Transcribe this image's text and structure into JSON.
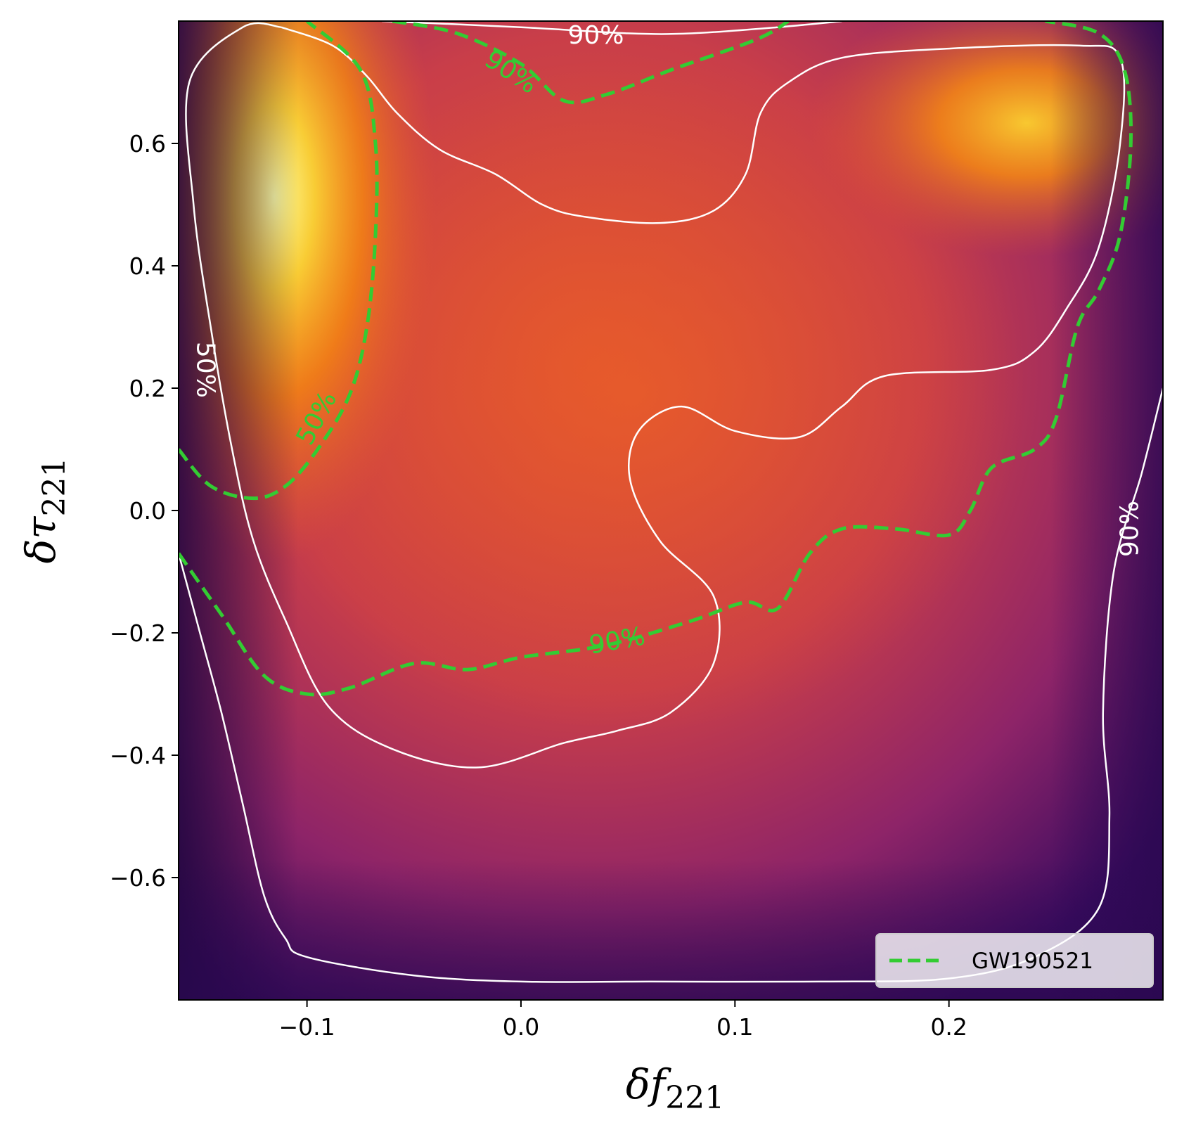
{
  "chart_data": {
    "type": "heatmap",
    "title": "",
    "xlabel": "δf",
    "xlabel_sub": "221",
    "ylabel": "δτ",
    "ylabel_sub": "221",
    "xlim": [
      -0.16,
      0.3
    ],
    "ylim": [
      -0.8,
      0.8
    ],
    "x_ticks": [
      -0.1,
      0.0,
      0.1,
      0.2
    ],
    "x_tick_labels": [
      "−0.1",
      "0.0",
      "0.1",
      "0.2"
    ],
    "y_ticks": [
      0.6,
      0.4,
      0.2,
      0.0,
      -0.2,
      -0.4,
      -0.6
    ],
    "y_tick_labels": [
      "0.6",
      "0.4",
      "0.2",
      "0.0",
      "−0.2",
      "−0.4",
      "−0.6"
    ],
    "colormap": "inferno",
    "density_modes": [
      {
        "x": -0.115,
        "y": 0.55,
        "relative_density": 1.0
      },
      {
        "x": 0.23,
        "y": 0.63,
        "relative_density": 0.8
      }
    ],
    "contours": [
      {
        "name": "main-50",
        "level_label": "50%",
        "color": "#ffffff",
        "style": "solid",
        "points": [
          [
            -0.112,
            0.79
          ],
          [
            -0.088,
            0.76
          ],
          [
            -0.072,
            0.71
          ],
          [
            -0.058,
            0.65
          ],
          [
            -0.038,
            0.59
          ],
          [
            -0.012,
            0.55
          ],
          [
            0.01,
            0.5
          ],
          [
            0.03,
            0.48
          ],
          [
            0.065,
            0.47
          ],
          [
            0.09,
            0.49
          ],
          [
            0.105,
            0.55
          ],
          [
            0.112,
            0.65
          ],
          [
            0.125,
            0.7
          ],
          [
            0.15,
            0.74
          ],
          [
            0.2,
            0.755
          ],
          [
            0.26,
            0.76
          ],
          [
            0.28,
            0.74
          ],
          [
            0.28,
            0.6
          ],
          [
            0.27,
            0.43
          ],
          [
            0.255,
            0.33
          ],
          [
            0.24,
            0.26
          ],
          [
            0.22,
            0.23
          ],
          [
            0.17,
            0.22
          ],
          [
            0.15,
            0.17
          ],
          [
            0.13,
            0.12
          ],
          [
            0.1,
            0.13
          ],
          [
            0.075,
            0.17
          ],
          [
            0.055,
            0.13
          ],
          [
            0.051,
            0.05
          ],
          [
            0.065,
            -0.05
          ],
          [
            0.09,
            -0.14
          ],
          [
            0.09,
            -0.25
          ],
          [
            0.07,
            -0.33
          ],
          [
            0.045,
            -0.36
          ],
          [
            0.02,
            -0.38
          ],
          [
            -0.02,
            -0.42
          ],
          [
            -0.06,
            -0.39
          ],
          [
            -0.09,
            -0.32
          ],
          [
            -0.11,
            -0.18
          ],
          [
            -0.125,
            -0.05
          ],
          [
            -0.135,
            0.1
          ],
          [
            -0.145,
            0.3
          ],
          [
            -0.153,
            0.5
          ],
          [
            -0.155,
            0.7
          ],
          [
            -0.13,
            0.79
          ],
          [
            -0.112,
            0.79
          ]
        ]
      },
      {
        "name": "main-90",
        "level_label": "90%",
        "color": "#ffffff",
        "style": "solid",
        "points": [
          [
            -0.16,
            -0.07
          ],
          [
            -0.15,
            -0.2
          ],
          [
            -0.14,
            -0.33
          ],
          [
            -0.13,
            -0.48
          ],
          [
            -0.12,
            -0.63
          ],
          [
            -0.11,
            -0.7
          ],
          [
            -0.1,
            -0.73
          ],
          [
            -0.05,
            -0.76
          ],
          [
            0.0,
            -0.77
          ],
          [
            0.06,
            -0.77
          ],
          [
            0.14,
            -0.77
          ],
          [
            0.2,
            -0.765
          ],
          [
            0.24,
            -0.73
          ],
          [
            0.27,
            -0.65
          ],
          [
            0.275,
            -0.5
          ],
          [
            0.272,
            -0.33
          ],
          [
            0.277,
            -0.1
          ],
          [
            0.29,
            0.06
          ],
          [
            0.3,
            0.2
          ]
        ]
      },
      {
        "name": "main-90-upper",
        "level_label": "90%",
        "color": "#ffffff",
        "style": "solid",
        "points": [
          [
            -0.065,
            0.8
          ],
          [
            0.0,
            0.79
          ],
          [
            0.05,
            0.78
          ],
          [
            0.08,
            0.78
          ],
          [
            0.12,
            0.79
          ],
          [
            0.15,
            0.8
          ]
        ]
      },
      {
        "name": "gw-50",
        "level_label": "50%",
        "color": "#33cc33",
        "style": "dashed",
        "points": [
          [
            -0.16,
            0.1
          ],
          [
            -0.145,
            0.04
          ],
          [
            -0.125,
            0.02
          ],
          [
            -0.11,
            0.04
          ],
          [
            -0.095,
            0.1
          ],
          [
            -0.08,
            0.19
          ],
          [
            -0.072,
            0.3
          ],
          [
            -0.068,
            0.45
          ],
          [
            -0.068,
            0.6
          ],
          [
            -0.075,
            0.72
          ],
          [
            -0.1,
            0.8
          ]
        ]
      },
      {
        "name": "gw-90",
        "level_label": "90%",
        "color": "#33cc33",
        "style": "dashed",
        "points": [
          [
            -0.16,
            -0.07
          ],
          [
            -0.14,
            -0.17
          ],
          [
            -0.12,
            -0.27
          ],
          [
            -0.1,
            -0.3
          ],
          [
            -0.08,
            -0.29
          ],
          [
            -0.05,
            -0.25
          ],
          [
            -0.025,
            -0.26
          ],
          [
            0.0,
            -0.24
          ],
          [
            0.04,
            -0.22
          ],
          [
            0.08,
            -0.18
          ],
          [
            0.105,
            -0.15
          ],
          [
            0.12,
            -0.16
          ],
          [
            0.135,
            -0.07
          ],
          [
            0.15,
            -0.03
          ],
          [
            0.175,
            -0.03
          ],
          [
            0.2,
            -0.04
          ],
          [
            0.21,
            0.0
          ],
          [
            0.22,
            0.07
          ],
          [
            0.24,
            0.1
          ],
          [
            0.25,
            0.15
          ],
          [
            0.26,
            0.3
          ],
          [
            0.27,
            0.36
          ],
          [
            0.28,
            0.45
          ],
          [
            0.285,
            0.6
          ],
          [
            0.282,
            0.72
          ],
          [
            0.27,
            0.78
          ],
          [
            0.245,
            0.8
          ]
        ]
      },
      {
        "name": "gw-90-upper",
        "level_label": "90%",
        "color": "#33cc33",
        "style": "dashed",
        "points": [
          [
            -0.06,
            0.8
          ],
          [
            -0.03,
            0.78
          ],
          [
            0.0,
            0.73
          ],
          [
            0.02,
            0.67
          ],
          [
            0.04,
            0.68
          ],
          [
            0.07,
            0.72
          ],
          [
            0.11,
            0.77
          ],
          [
            0.125,
            0.8
          ]
        ]
      }
    ],
    "contour_labels": [
      {
        "text": "90%",
        "x": 0.035,
        "y": 0.775,
        "color": "#ffffff",
        "rotation": 0
      },
      {
        "text": "90%",
        "x": -0.005,
        "y": 0.715,
        "color": "#33cc33",
        "rotation": 33
      },
      {
        "text": "50%",
        "x": -0.148,
        "y": 0.23,
        "color": "#ffffff",
        "rotation": 90
      },
      {
        "text": "50%",
        "x": -0.095,
        "y": 0.15,
        "color": "#33cc33",
        "rotation": -62
      },
      {
        "text": "90%",
        "x": 0.045,
        "y": -0.215,
        "color": "#33cc33",
        "rotation": -10
      },
      {
        "text": "90%",
        "x": 0.285,
        "y": -0.03,
        "color": "#ffffff",
        "rotation": -90
      }
    ],
    "legend": {
      "position": "bottom-right",
      "entries": [
        {
          "label": "GW190521",
          "color": "#33cc33",
          "style": "dashed"
        }
      ]
    }
  }
}
